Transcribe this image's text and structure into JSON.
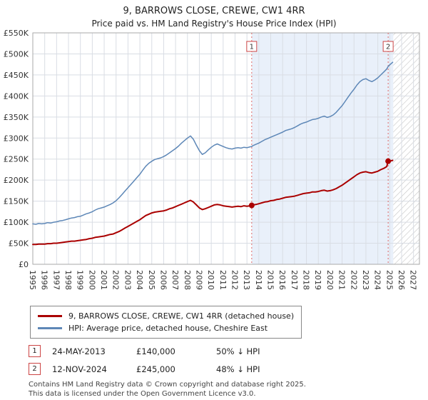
{
  "title": "9, BARROWS CLOSE, CREWE, CW1 4RR",
  "subtitle": "Price paid vs. HM Land Registry's House Price Index (HPI)",
  "chart_data": {
    "type": "line",
    "x_range": [
      1995,
      2027.5
    ],
    "y_range": [
      0,
      550
    ],
    "unit": "GBP thousands",
    "x_ticks": [
      1995,
      1996,
      1997,
      1998,
      1999,
      2000,
      2001,
      2002,
      2003,
      2004,
      2005,
      2006,
      2007,
      2008,
      2009,
      2010,
      2011,
      2012,
      2013,
      2014,
      2015,
      2016,
      2017,
      2018,
      2019,
      2020,
      2021,
      2022,
      2023,
      2024,
      2025,
      2026,
      2027
    ],
    "y_ticks": [
      {
        "v": 0,
        "label": "£0"
      },
      {
        "v": 50,
        "label": "£50K"
      },
      {
        "v": 100,
        "label": "£100K"
      },
      {
        "v": 150,
        "label": "£150K"
      },
      {
        "v": 200,
        "label": "£200K"
      },
      {
        "v": 250,
        "label": "£250K"
      },
      {
        "v": 300,
        "label": "£300K"
      },
      {
        "v": 350,
        "label": "£350K"
      },
      {
        "v": 400,
        "label": "£400K"
      },
      {
        "v": 450,
        "label": "£450K"
      },
      {
        "v": 500,
        "label": "£500K"
      },
      {
        "v": 550,
        "label": "£550K"
      }
    ],
    "colors": {
      "grid": "#d9dde4",
      "shaded": "#e9f0fa",
      "hatch": "#c4c4c4",
      "vline": "#dd6666",
      "vline_box": "#cc4444",
      "border": "#aaaaaa"
    },
    "shaded_region": {
      "from": 2013.4,
      "to": 2025.3
    },
    "hatched_region": {
      "from": 2025.3,
      "to": 2027.5
    },
    "markers": [
      {
        "num": "1",
        "x": 2013.4,
        "y": 140
      },
      {
        "num": "2",
        "x": 2024.87,
        "y": 245
      }
    ],
    "series": [
      {
        "name": "9, BARROWS CLOSE, CREWE, CW1 4RR (detached house)",
        "color": "#aa0000",
        "width": 2,
        "points": [
          [
            1995,
            47
          ],
          [
            1995.25,
            47
          ],
          [
            1995.5,
            48
          ],
          [
            1995.75,
            48
          ],
          [
            1996,
            48
          ],
          [
            1996.25,
            49
          ],
          [
            1996.5,
            49
          ],
          [
            1996.75,
            50
          ],
          [
            1997,
            50
          ],
          [
            1997.25,
            51
          ],
          [
            1997.5,
            52
          ],
          [
            1997.75,
            53
          ],
          [
            1998,
            54
          ],
          [
            1998.25,
            55
          ],
          [
            1998.5,
            55
          ],
          [
            1998.75,
            56
          ],
          [
            1999,
            57
          ],
          [
            1999.25,
            58
          ],
          [
            1999.5,
            59
          ],
          [
            1999.75,
            61
          ],
          [
            2000,
            62
          ],
          [
            2000.25,
            64
          ],
          [
            2000.5,
            65
          ],
          [
            2000.75,
            66
          ],
          [
            2001,
            67
          ],
          [
            2001.25,
            69
          ],
          [
            2001.5,
            71
          ],
          [
            2001.75,
            72
          ],
          [
            2002,
            75
          ],
          [
            2002.25,
            78
          ],
          [
            2002.5,
            82
          ],
          [
            2002.75,
            86
          ],
          [
            2003,
            90
          ],
          [
            2003.25,
            94
          ],
          [
            2003.5,
            98
          ],
          [
            2003.75,
            102
          ],
          [
            2004,
            106
          ],
          [
            2004.25,
            111
          ],
          [
            2004.5,
            116
          ],
          [
            2004.75,
            119
          ],
          [
            2005,
            122
          ],
          [
            2005.25,
            124
          ],
          [
            2005.5,
            125
          ],
          [
            2005.75,
            126
          ],
          [
            2006,
            127
          ],
          [
            2006.25,
            129
          ],
          [
            2006.5,
            132
          ],
          [
            2006.75,
            134
          ],
          [
            2007,
            137
          ],
          [
            2007.25,
            140
          ],
          [
            2007.5,
            143
          ],
          [
            2007.75,
            146
          ],
          [
            2008,
            149
          ],
          [
            2008.25,
            152
          ],
          [
            2008.5,
            148
          ],
          [
            2008.75,
            141
          ],
          [
            2009,
            134
          ],
          [
            2009.25,
            130
          ],
          [
            2009.5,
            132
          ],
          [
            2009.75,
            135
          ],
          [
            2010,
            138
          ],
          [
            2010.25,
            141
          ],
          [
            2010.5,
            142
          ],
          [
            2010.75,
            141
          ],
          [
            2011,
            139
          ],
          [
            2011.25,
            138
          ],
          [
            2011.5,
            137
          ],
          [
            2011.75,
            136
          ],
          [
            2012,
            137
          ],
          [
            2012.25,
            138
          ],
          [
            2012.5,
            137
          ],
          [
            2012.75,
            139
          ],
          [
            2013,
            138
          ],
          [
            2013.25,
            139
          ],
          [
            2013.4,
            140
          ],
          [
            2013.5,
            141
          ],
          [
            2013.75,
            142
          ],
          [
            2014,
            144
          ],
          [
            2014.25,
            146
          ],
          [
            2014.5,
            148
          ],
          [
            2014.75,
            149
          ],
          [
            2015,
            151
          ],
          [
            2015.25,
            152
          ],
          [
            2015.5,
            154
          ],
          [
            2015.75,
            155
          ],
          [
            2016,
            157
          ],
          [
            2016.25,
            159
          ],
          [
            2016.5,
            160
          ],
          [
            2016.75,
            161
          ],
          [
            2017,
            162
          ],
          [
            2017.25,
            164
          ],
          [
            2017.5,
            166
          ],
          [
            2017.75,
            168
          ],
          [
            2018,
            169
          ],
          [
            2018.25,
            170
          ],
          [
            2018.5,
            172
          ],
          [
            2018.75,
            172
          ],
          [
            2019,
            173
          ],
          [
            2019.25,
            175
          ],
          [
            2019.5,
            176
          ],
          [
            2019.75,
            174
          ],
          [
            2020,
            175
          ],
          [
            2020.25,
            177
          ],
          [
            2020.5,
            180
          ],
          [
            2020.75,
            184
          ],
          [
            2021,
            188
          ],
          [
            2021.25,
            193
          ],
          [
            2021.5,
            198
          ],
          [
            2021.75,
            203
          ],
          [
            2022,
            208
          ],
          [
            2022.25,
            213
          ],
          [
            2022.5,
            217
          ],
          [
            2022.75,
            219
          ],
          [
            2023,
            220
          ],
          [
            2023.25,
            218
          ],
          [
            2023.5,
            217
          ],
          [
            2023.75,
            219
          ],
          [
            2024,
            221
          ],
          [
            2024.25,
            225
          ],
          [
            2024.5,
            228
          ],
          [
            2024.75,
            232
          ],
          [
            2024.87,
            245
          ],
          [
            2025,
            245
          ],
          [
            2025.25,
            247
          ]
        ]
      },
      {
        "name": "HPI: Average price, detached house, Cheshire East",
        "color": "#5d87b7",
        "width": 1.5,
        "points": [
          [
            1995,
            96
          ],
          [
            1995.25,
            95
          ],
          [
            1995.5,
            97
          ],
          [
            1995.75,
            96
          ],
          [
            1996,
            97
          ],
          [
            1996.25,
            99
          ],
          [
            1996.5,
            98
          ],
          [
            1996.75,
            100
          ],
          [
            1997,
            101
          ],
          [
            1997.25,
            103
          ],
          [
            1997.5,
            104
          ],
          [
            1997.75,
            106
          ],
          [
            1998,
            108
          ],
          [
            1998.25,
            110
          ],
          [
            1998.5,
            111
          ],
          [
            1998.75,
            113
          ],
          [
            1999,
            114
          ],
          [
            1999.25,
            117
          ],
          [
            1999.5,
            120
          ],
          [
            1999.75,
            122
          ],
          [
            2000,
            125
          ],
          [
            2000.25,
            129
          ],
          [
            2000.5,
            132
          ],
          [
            2000.75,
            134
          ],
          [
            2001,
            136
          ],
          [
            2001.25,
            139
          ],
          [
            2001.5,
            142
          ],
          [
            2001.75,
            146
          ],
          [
            2002,
            151
          ],
          [
            2002.25,
            158
          ],
          [
            2002.5,
            166
          ],
          [
            2002.75,
            174
          ],
          [
            2003,
            182
          ],
          [
            2003.25,
            190
          ],
          [
            2003.5,
            198
          ],
          [
            2003.75,
            206
          ],
          [
            2004,
            214
          ],
          [
            2004.25,
            224
          ],
          [
            2004.5,
            233
          ],
          [
            2004.75,
            240
          ],
          [
            2005,
            245
          ],
          [
            2005.25,
            249
          ],
          [
            2005.5,
            251
          ],
          [
            2005.75,
            253
          ],
          [
            2006,
            256
          ],
          [
            2006.25,
            260
          ],
          [
            2006.5,
            265
          ],
          [
            2006.75,
            270
          ],
          [
            2007,
            275
          ],
          [
            2007.25,
            281
          ],
          [
            2007.5,
            288
          ],
          [
            2007.75,
            294
          ],
          [
            2008,
            300
          ],
          [
            2008.25,
            305
          ],
          [
            2008.5,
            297
          ],
          [
            2008.75,
            283
          ],
          [
            2009,
            270
          ],
          [
            2009.25,
            261
          ],
          [
            2009.5,
            265
          ],
          [
            2009.75,
            272
          ],
          [
            2010,
            278
          ],
          [
            2010.25,
            283
          ],
          [
            2010.5,
            286
          ],
          [
            2010.75,
            283
          ],
          [
            2011,
            280
          ],
          [
            2011.25,
            277
          ],
          [
            2011.5,
            275
          ],
          [
            2011.75,
            274
          ],
          [
            2012,
            276
          ],
          [
            2012.25,
            277
          ],
          [
            2012.5,
            276
          ],
          [
            2012.75,
            278
          ],
          [
            2013,
            277
          ],
          [
            2013.25,
            279
          ],
          [
            2013.4,
            280
          ],
          [
            2013.5,
            282
          ],
          [
            2013.75,
            285
          ],
          [
            2014,
            288
          ],
          [
            2014.25,
            292
          ],
          [
            2014.5,
            296
          ],
          [
            2014.75,
            299
          ],
          [
            2015,
            302
          ],
          [
            2015.25,
            305
          ],
          [
            2015.5,
            308
          ],
          [
            2015.75,
            311
          ],
          [
            2016,
            314
          ],
          [
            2016.25,
            318
          ],
          [
            2016.5,
            320
          ],
          [
            2016.75,
            322
          ],
          [
            2017,
            325
          ],
          [
            2017.25,
            329
          ],
          [
            2017.5,
            333
          ],
          [
            2017.75,
            336
          ],
          [
            2018,
            338
          ],
          [
            2018.25,
            341
          ],
          [
            2018.5,
            344
          ],
          [
            2018.75,
            345
          ],
          [
            2019,
            347
          ],
          [
            2019.25,
            350
          ],
          [
            2019.5,
            352
          ],
          [
            2019.75,
            349
          ],
          [
            2020,
            351
          ],
          [
            2020.25,
            355
          ],
          [
            2020.5,
            361
          ],
          [
            2020.75,
            369
          ],
          [
            2021,
            377
          ],
          [
            2021.25,
            387
          ],
          [
            2021.5,
            397
          ],
          [
            2021.75,
            407
          ],
          [
            2022,
            416
          ],
          [
            2022.25,
            426
          ],
          [
            2022.5,
            434
          ],
          [
            2022.75,
            439
          ],
          [
            2023,
            441
          ],
          [
            2023.25,
            437
          ],
          [
            2023.5,
            434
          ],
          [
            2023.75,
            438
          ],
          [
            2024,
            443
          ],
          [
            2024.25,
            450
          ],
          [
            2024.5,
            457
          ],
          [
            2024.75,
            464
          ],
          [
            2024.87,
            470
          ],
          [
            2025,
            474
          ],
          [
            2025.25,
            480
          ]
        ]
      }
    ]
  },
  "annotations": [
    {
      "num": "1",
      "date": "24-MAY-2013",
      "price": "£140,000",
      "delta": "50% ↓ HPI"
    },
    {
      "num": "2",
      "date": "12-NOV-2024",
      "price": "£245,000",
      "delta": "48% ↓ HPI"
    }
  ],
  "footer": {
    "line1": "Contains HM Land Registry data © Crown copyright and database right 2025.",
    "line2": "This data is licensed under the Open Government Licence v3.0."
  }
}
